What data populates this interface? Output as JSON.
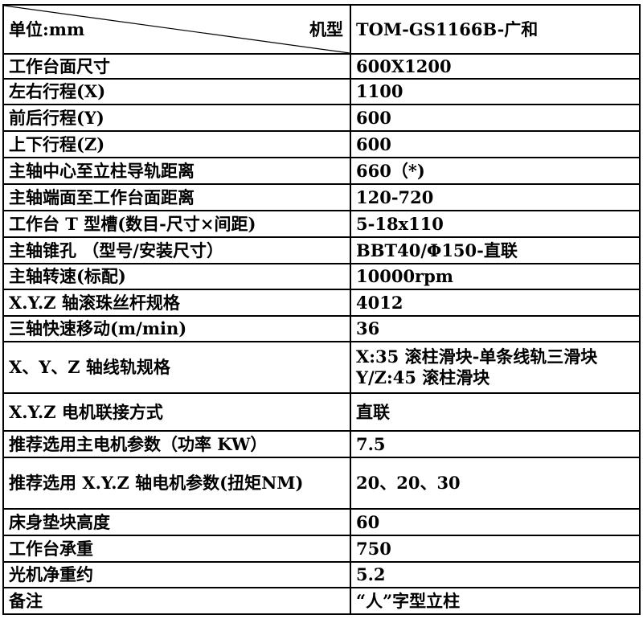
{
  "header": {
    "unit_label": "单位:mm",
    "model_label": "机型",
    "model_value": "TOM-GS1166B-广和"
  },
  "rows": [
    {
      "label": "工作台面尺寸",
      "value": "600X1200"
    },
    {
      "label": "左右行程(X)",
      "value": "1100"
    },
    {
      "label": "前后行程(Y)",
      "value": "600"
    },
    {
      "label": "上下行程(Z)",
      "value": "600"
    },
    {
      "label": "主轴中心至立柱导轨距离",
      "value": "660（*)"
    },
    {
      "label": "主轴端面至工作台面距离",
      "value": "120-720"
    },
    {
      "label": "工作台 T 型槽(数目-尺寸×间距)",
      "value": "5-18x110"
    },
    {
      "label": "主轴锥孔 （型号/安装尺寸）",
      "value": "BBT40/Φ150-直联"
    },
    {
      "label": "主轴转速(标配)",
      "value": "10000rpm"
    },
    {
      "label": "X.Y.Z 轴滚珠丝杆规格",
      "value": "4012"
    },
    {
      "label": "三轴快速移动(m/min)",
      "value": "36"
    },
    {
      "label": "X、Y、Z 轴线轨规格",
      "value": "X:35 滚柱滑块-单条线轨三滑块  Y/Z:45 滚柱滑块"
    },
    {
      "label": "X.Y.Z 电机联接方式",
      "value": "直联"
    },
    {
      "label": "推荐选用主电机参数（功率 KW）",
      "value": "7.5"
    },
    {
      "label": "推荐选用 X.Y.Z 轴电机参数(扭矩NM)",
      "value": "20、20、30"
    },
    {
      "label": "床身垫块高度",
      "value": "60"
    },
    {
      "label": "工作台承重",
      "value": "750"
    },
    {
      "label": "光机净重约",
      "value": "5.2"
    },
    {
      "label": "备注",
      "value": "“人”字型立柱"
    }
  ]
}
